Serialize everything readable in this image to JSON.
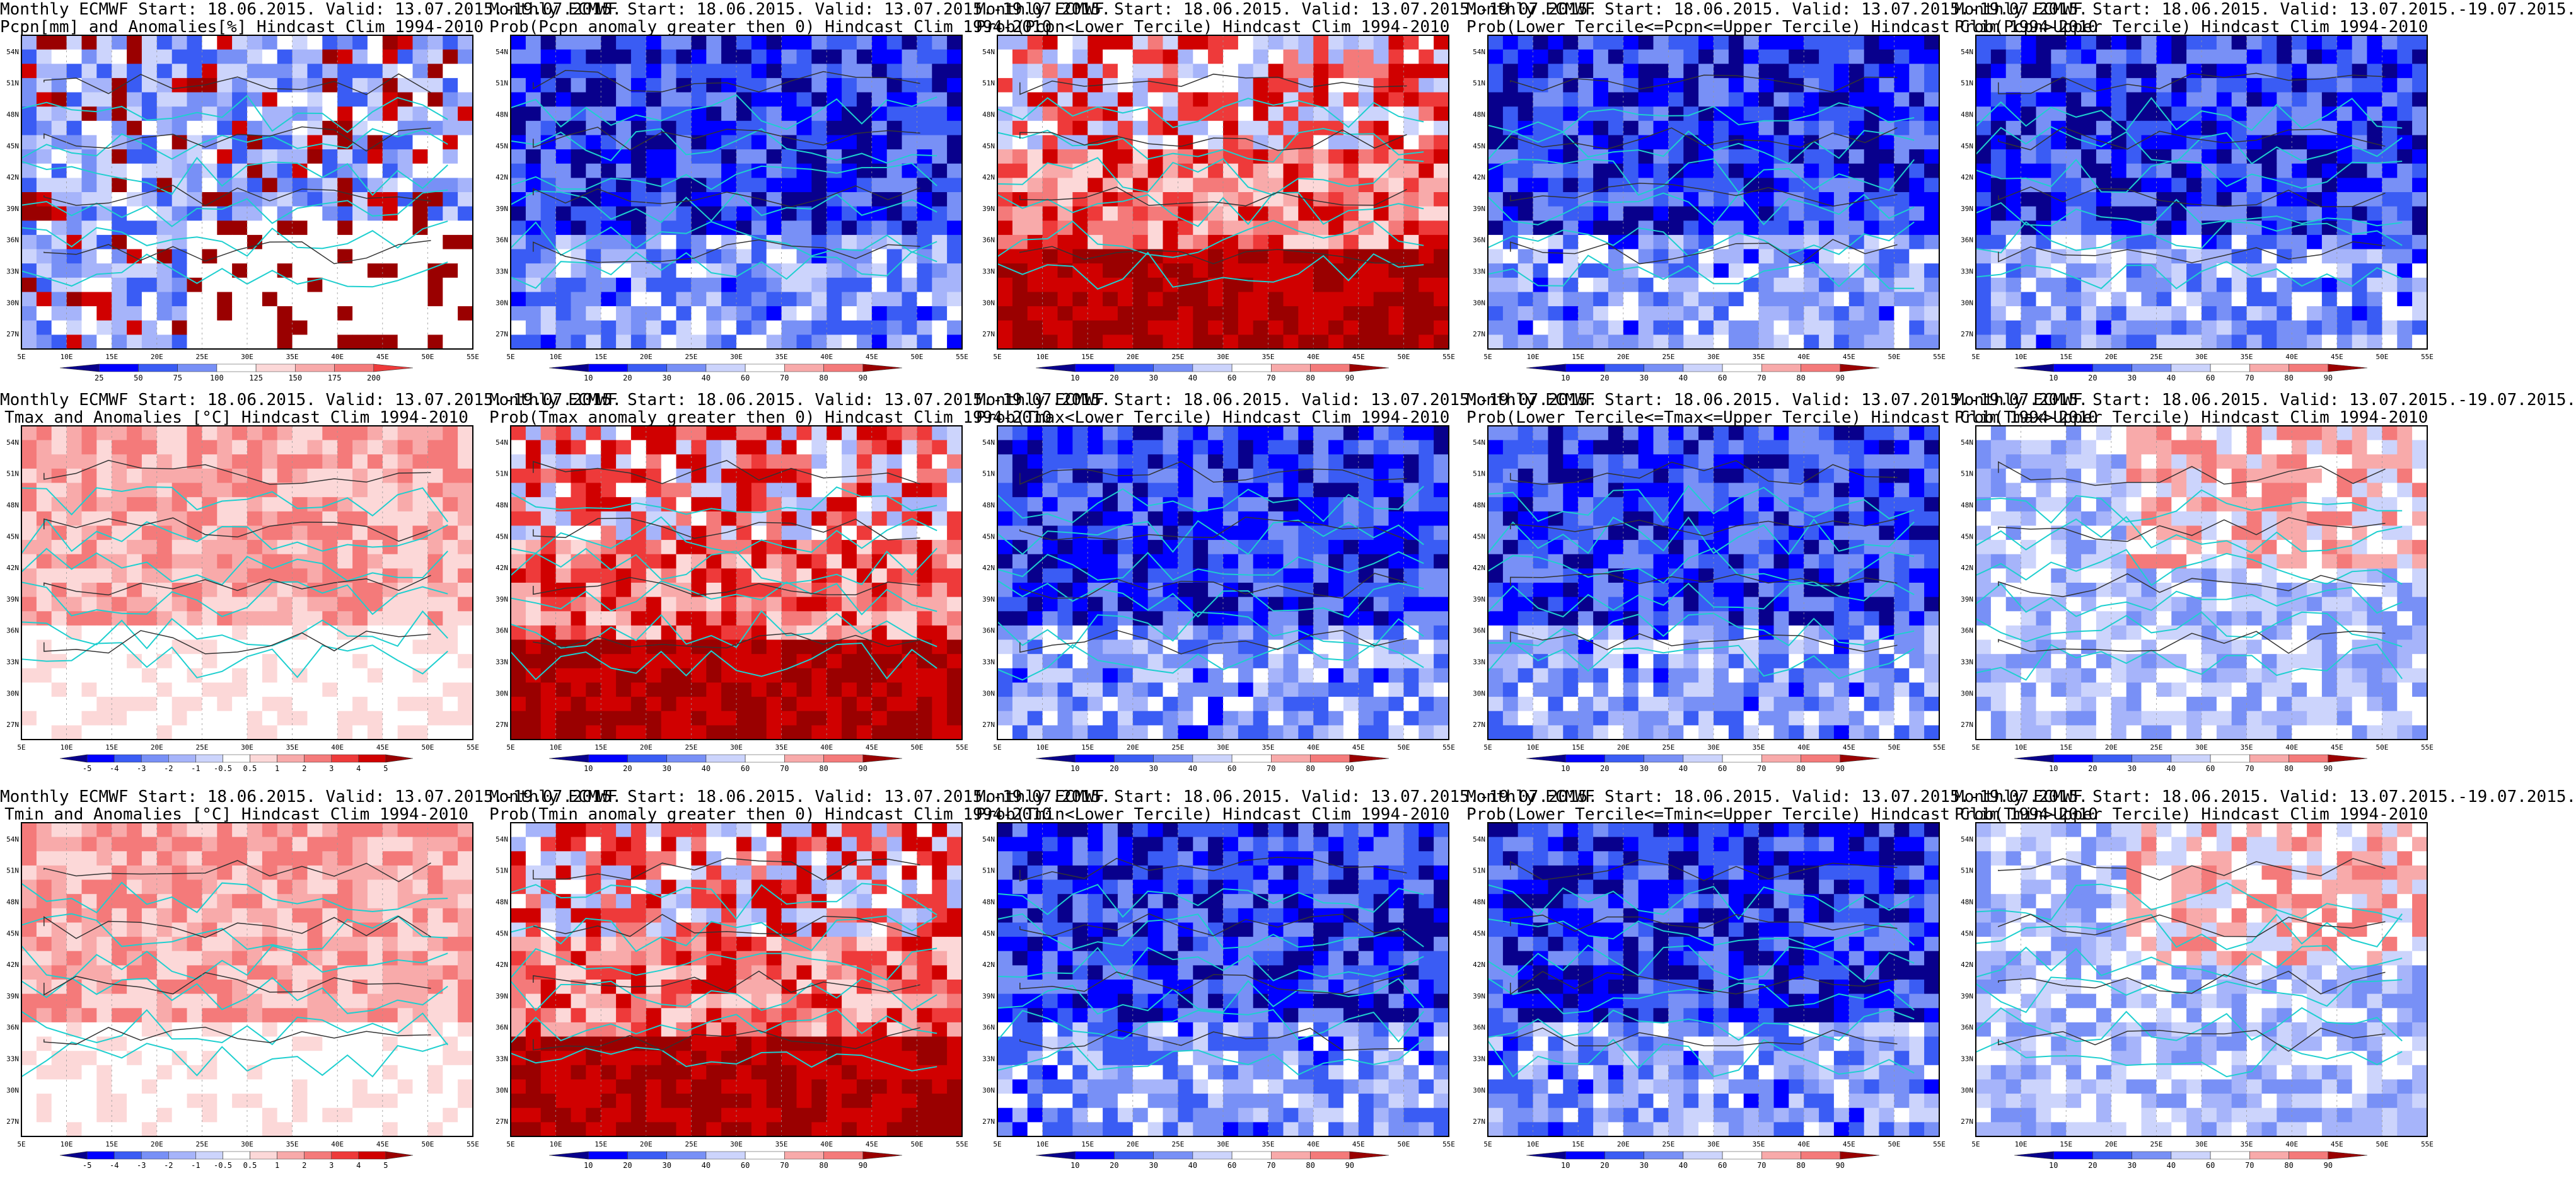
{
  "page": {
    "background": "#ffffff"
  },
  "colors": {
    "blue_scale": [
      "#08008c",
      "#0000ff",
      "#3a5cf4",
      "#7890f6",
      "#a6b4fa",
      "#ccd4fc",
      "#ffffff"
    ],
    "red_scale": [
      "#ffffff",
      "#fcd8d8",
      "#f8aaaa",
      "#f47a7a",
      "#ee3a3a",
      "#d00000",
      "#9a0000"
    ],
    "coast": "#1ecfcf",
    "contour": "#333333"
  },
  "lat_labels": [
    "54N",
    "51N",
    "48N",
    "45N",
    "42N",
    "39N",
    "36N",
    "33N",
    "30N",
    "27N"
  ],
  "lon_labels": [
    "5E",
    "10E",
    "15E",
    "20E",
    "25E",
    "30E",
    "35E",
    "40E",
    "45E",
    "50E",
    "55E"
  ],
  "rows": [
    {
      "variable": "Pcpn",
      "panels": [
        {
          "title_line1": "Monthly ECMWF Start: 18.06.2015. Valid: 13.07.2015.-19.07.2015.",
          "title_line2": "Pcpn[mm] and Anomalies[%] Hindcast Clim 1994-2010",
          "kind": "anom",
          "colorbar_labels": [
            "25",
            "50",
            "75",
            "100",
            "125",
            "150",
            "175",
            "200"
          ]
        },
        {
          "title_line1": "Monthly ECMWF Start: 18.06.2015. Valid: 13.07.2015.-19.07.2015.",
          "title_line2": "Prob(Pcpn anomaly greater then 0) Hindcast Clim 1994-2010",
          "kind": "blue",
          "colorbar_labels": [
            "10",
            "20",
            "30",
            "40",
            "60",
            "70",
            "80",
            "90"
          ]
        },
        {
          "title_line1": "Monthly ECMWF Start: 18.06.2015. Valid: 13.07.2015.-19.07.2015.",
          "title_line2": "Prob(Pcpn<Lower Tercile) Hindcast Clim 1994-2010",
          "kind": "red",
          "colorbar_labels": [
            "10",
            "20",
            "30",
            "40",
            "60",
            "70",
            "80",
            "90"
          ]
        },
        {
          "title_line1": "Monthly ECMWF Start: 18.06.2015. Valid: 13.07.2015.-19.07.2015.",
          "title_line2": "Prob(Lower Tercile<=Pcpn<=Upper Tercile) Hindcast Clim 1994-2010",
          "kind": "blue",
          "colorbar_labels": [
            "10",
            "20",
            "30",
            "40",
            "60",
            "70",
            "80",
            "90"
          ]
        },
        {
          "title_line1": "Monthly ECMWF Start: 18.06.2015. Valid: 13.07.2015.-19.07.2015.",
          "title_line2": "Prob(Pcpn>Upper Tercile) Hindcast Clim 1994-2010",
          "kind": "blue",
          "colorbar_labels": [
            "10",
            "20",
            "30",
            "40",
            "60",
            "70",
            "80",
            "90"
          ]
        }
      ]
    },
    {
      "variable": "Tmax",
      "panels": [
        {
          "title_line1": "Monthly ECMWF Start: 18.06.2015. Valid: 13.07.2015.-19.07.2015.",
          "title_line2": "Tmax and Anomalies [°C] Hindcast Clim 1994-2010",
          "kind": "warm",
          "colorbar_labels": [
            "-5",
            "-4",
            "-3",
            "-2",
            "-1",
            "-0.5",
            "0.5",
            "1",
            "2",
            "3",
            "4",
            "5"
          ]
        },
        {
          "title_line1": "Monthly ECMWF Start: 18.06.2015. Valid: 13.07.2015.-19.07.2015.",
          "title_line2": "Prob(Tmax anomaly greater then 0) Hindcast Clim 1994-2010",
          "kind": "red",
          "colorbar_labels": [
            "10",
            "20",
            "30",
            "40",
            "60",
            "70",
            "80",
            "90"
          ]
        },
        {
          "title_line1": "Monthly ECMWF Start: 18.06.2015. Valid: 13.07.2015.-19.07.2015.",
          "title_line2": "Prob(Tmax<Lower Tercile) Hindcast Clim 1994-2010",
          "kind": "blue",
          "colorbar_labels": [
            "10",
            "20",
            "30",
            "40",
            "60",
            "70",
            "80",
            "90"
          ]
        },
        {
          "title_line1": "Monthly ECMWF Start: 18.06.2015. Valid: 13.07.2015.-19.07.2015.",
          "title_line2": "Prob(Lower Tercile<=Tmax<=Upper Tercile) Hindcast Clim 1994-2010",
          "kind": "blue",
          "colorbar_labels": [
            "10",
            "20",
            "30",
            "40",
            "60",
            "70",
            "80",
            "90"
          ]
        },
        {
          "title_line1": "Monthly ECMWF Start: 18.06.2015. Valid: 13.07.2015.-19.07.2015.",
          "title_line2": "Prob(Tmax>Upper Tercile) Hindcast Clim 1994-2010",
          "kind": "mixed",
          "colorbar_labels": [
            "10",
            "20",
            "30",
            "40",
            "60",
            "70",
            "80",
            "90"
          ]
        }
      ]
    },
    {
      "variable": "Tmin",
      "panels": [
        {
          "title_line1": "Monthly ECMWF Start: 18.06.2015. Valid: 13.07.2015.-19.07.2015.",
          "title_line2": "Tmin and Anomalies [°C] Hindcast Clim 1994-2010",
          "kind": "warm",
          "colorbar_labels": [
            "-5",
            "-4",
            "-3",
            "-2",
            "-1",
            "-0.5",
            "0.5",
            "1",
            "2",
            "3",
            "4",
            "5"
          ]
        },
        {
          "title_line1": "Monthly ECMWF Start: 18.06.2015. Valid: 13.07.2015.-19.07.2015.",
          "title_line2": "Prob(Tmin anomaly greater then 0) Hindcast Clim 1994-2010",
          "kind": "red",
          "colorbar_labels": [
            "10",
            "20",
            "30",
            "40",
            "60",
            "70",
            "80",
            "90"
          ]
        },
        {
          "title_line1": "Monthly ECMWF Start: 18.06.2015. Valid: 13.07.2015.-19.07.2015.",
          "title_line2": "Prob(Tmin<Lower Tercile) Hindcast Clim 1994-2010",
          "kind": "blue",
          "colorbar_labels": [
            "10",
            "20",
            "30",
            "40",
            "60",
            "70",
            "80",
            "90"
          ]
        },
        {
          "title_line1": "Monthly ECMWF Start: 18.06.2015. Valid: 13.07.2015.-19.07.2015.",
          "title_line2": "Prob(Lower Tercile<=Tmin<=Upper Tercile) Hindcast Clim 1994-2010",
          "kind": "blue",
          "colorbar_labels": [
            "10",
            "20",
            "30",
            "40",
            "60",
            "70",
            "80",
            "90"
          ]
        },
        {
          "title_line1": "Monthly ECMWF Start: 18.06.2015. Valid: 13.07.2015.-19.07.2015.",
          "title_line2": "Prob(Tmin>Upper Tercile) Hindcast Clim 1994-2010",
          "kind": "mixed",
          "colorbar_labels": [
            "10",
            "20",
            "30",
            "40",
            "60",
            "70",
            "80",
            "90"
          ]
        }
      ]
    }
  ]
}
